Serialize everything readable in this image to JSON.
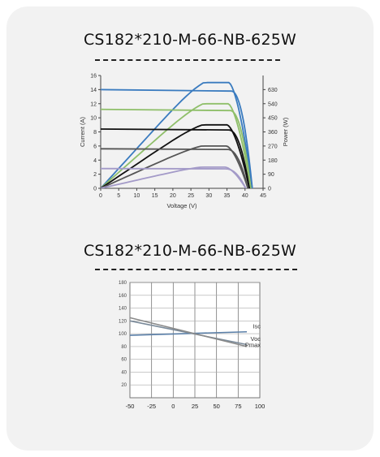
{
  "titles": {
    "top": "CS182*210-M-66-NB-625W",
    "bottom": "CS182*210-M-66-NB-625W"
  },
  "chart_data": [
    {
      "type": "line",
      "title": "CS182*210-M-66-NB-625W",
      "xlabel": "Voltage (V)",
      "ylabel": "Current (A)",
      "y2label": "Power (W)",
      "xlim": [
        0,
        45
      ],
      "ylim": [
        0,
        16
      ],
      "y2lim": [
        0,
        720
      ],
      "xticks": [
        0,
        5,
        10,
        15,
        20,
        25,
        30,
        35,
        40,
        45
      ],
      "yticks": [
        0,
        2,
        4,
        6,
        8,
        10,
        12,
        14,
        16
      ],
      "y2ticks": [
        0,
        90,
        180,
        270,
        360,
        450,
        540,
        630
      ],
      "grid": false,
      "series": [
        {
          "kind": "iv",
          "color": "#3a7bbf",
          "isc": 14.0,
          "voc": 42.0
        },
        {
          "kind": "pv",
          "color": "#3a7bbf",
          "pmax": 675,
          "vmp": 35.5,
          "voc": 42.0
        },
        {
          "kind": "iv",
          "color": "#8fbf6a",
          "isc": 11.2,
          "voc": 41.6
        },
        {
          "kind": "pv",
          "color": "#8fbf6a",
          "pmax": 540,
          "vmp": 35.3,
          "voc": 41.6
        },
        {
          "kind": "iv",
          "color": "#111111",
          "isc": 8.4,
          "voc": 41.2
        },
        {
          "kind": "pv",
          "color": "#111111",
          "pmax": 405,
          "vmp": 35.0,
          "voc": 41.2
        },
        {
          "kind": "iv",
          "color": "#555555",
          "isc": 5.6,
          "voc": 40.8
        },
        {
          "kind": "pv",
          "color": "#555555",
          "pmax": 270,
          "vmp": 34.8,
          "voc": 40.8
        },
        {
          "kind": "iv",
          "color": "#a39ac8",
          "isc": 2.8,
          "voc": 40.2
        },
        {
          "kind": "pv",
          "color": "#a39ac8",
          "pmax": 135,
          "vmp": 34.5,
          "voc": 40.2
        }
      ]
    },
    {
      "type": "line",
      "title": "CS182*210-M-66-NB-625W",
      "xlim": [
        -50,
        100
      ],
      "ylim": [
        0,
        180
      ],
      "xticks": [
        -50,
        -25,
        0,
        25,
        50,
        75,
        100
      ],
      "yticks": [
        20,
        40,
        60,
        80,
        100,
        120,
        140,
        160,
        180
      ],
      "grid": true,
      "series": [
        {
          "name": "Isc",
          "color": "#5a7fa8",
          "x": [
            -50,
            85
          ],
          "y": [
            97.5,
            103
          ]
        },
        {
          "name": "Voc",
          "color": "#7a8a9a",
          "x": [
            -50,
            85
          ],
          "y": [
            120,
            83
          ]
        },
        {
          "name": "Pmax",
          "color": "#8a8a8a",
          "x": [
            -50,
            85
          ],
          "y": [
            125,
            80
          ]
        }
      ]
    }
  ]
}
